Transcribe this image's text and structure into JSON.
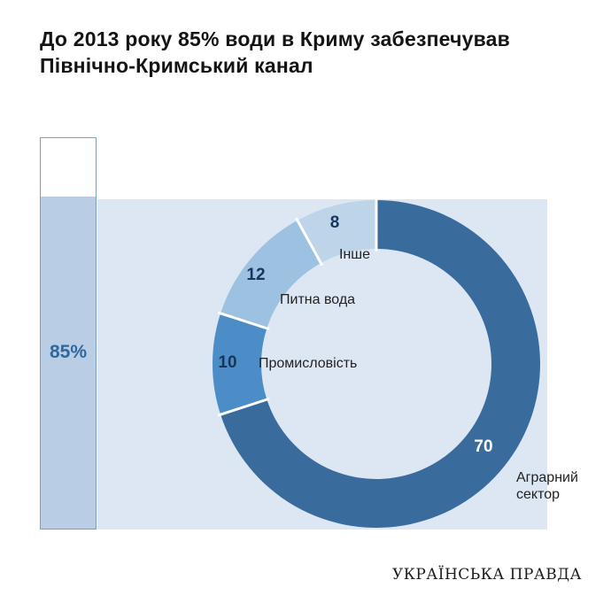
{
  "header": {
    "title_line1": "До 2013 року 85% води в Криму забезпечував",
    "title_line2": "Північно-Кримський канал"
  },
  "chart_data": {
    "type": "donut",
    "title": "До 2013 року 85% води в Криму забезпечував Північно-Кримський канал",
    "units": "%",
    "start": "top",
    "direction": "clockwise",
    "segments": [
      {
        "label": "Аграрний сектор",
        "value": 70,
        "color": "#3a6b9d"
      },
      {
        "label": "Промисловість",
        "value": 10,
        "color": "#4c8cc7"
      },
      {
        "label": "Питна вода",
        "value": 12,
        "color": "#9dc1e0"
      },
      {
        "label": "Інше",
        "value": 8,
        "color": "#bed4e9"
      }
    ],
    "bar": {
      "label": "85%",
      "percent": 85
    }
  },
  "colors": {
    "panel_bg": "#dce7f3",
    "bar_fill": "#b9cde4",
    "bar_border": "#7d9ec0",
    "bar_label": "#2f689c",
    "value_dark": "#17365d",
    "value_light": "#ffffff",
    "title_text": "#141414"
  },
  "footer": {
    "logo": "УКРАЇНСЬКА ПРАВДА"
  }
}
